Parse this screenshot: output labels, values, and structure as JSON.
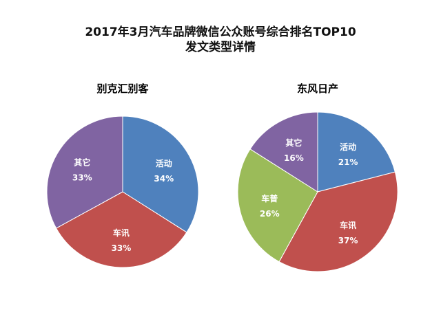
{
  "title": {
    "line1": "2017年3月汽车品牌微信公众账号综合排名TOP10",
    "line2": "发文类型详情"
  },
  "colors": {
    "活动": "#4f81bd",
    "车讯": "#c0504d",
    "车普": "#9bbb59",
    "其它": "#8064a2"
  },
  "chart_data": [
    {
      "type": "pie",
      "title": "别克汇别客",
      "slices": [
        {
          "label": "活动",
          "value": 34,
          "display": "34%"
        },
        {
          "label": "车讯",
          "value": 33,
          "display": "33%"
        },
        {
          "label": "其它",
          "value": 33,
          "display": "33%"
        }
      ]
    },
    {
      "type": "pie",
      "title": "东风日产",
      "slices": [
        {
          "label": "活动",
          "value": 21,
          "display": "21%"
        },
        {
          "label": "车讯",
          "value": 37,
          "display": "37%"
        },
        {
          "label": "车普",
          "value": 26,
          "display": "26%"
        },
        {
          "label": "其它",
          "value": 16,
          "display": "16%"
        }
      ]
    }
  ]
}
